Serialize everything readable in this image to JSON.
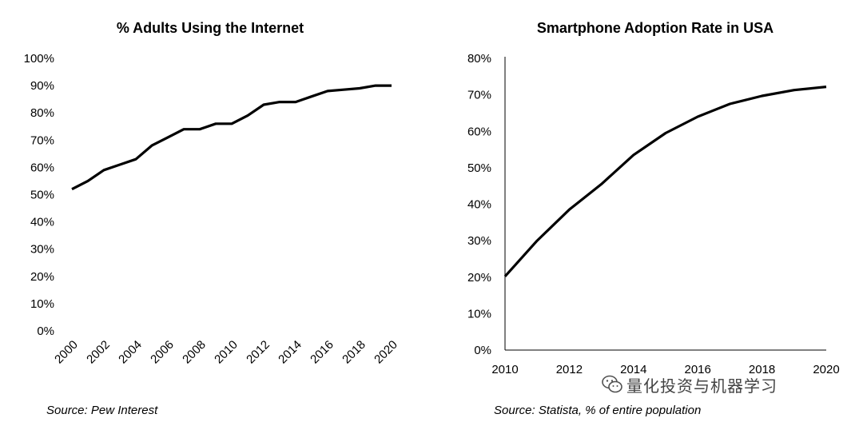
{
  "chart_data": [
    {
      "type": "line",
      "title": "% Adults Using the Internet",
      "x": [
        2000,
        2001,
        2002,
        2003,
        2004,
        2005,
        2006,
        2007,
        2008,
        2009,
        2010,
        2011,
        2012,
        2013,
        2014,
        2015,
        2016,
        2017,
        2018,
        2019,
        2020
      ],
      "series": [
        {
          "values": [
            52,
            55,
            59,
            61,
            63,
            68,
            71,
            74,
            74,
            76,
            76,
            79,
            83,
            84,
            84,
            86,
            88,
            88.5,
            89,
            90,
            90
          ]
        }
      ],
      "ylim": [
        0,
        100
      ],
      "y_ticks": [
        "0%",
        "10%",
        "20%",
        "30%",
        "40%",
        "50%",
        "60%",
        "70%",
        "80%",
        "90%",
        "100%"
      ],
      "x_ticks": [
        "2000",
        "2002",
        "2004",
        "2006",
        "2008",
        "2010",
        "2012",
        "2014",
        "2016",
        "2018",
        "2020"
      ],
      "grid": false,
      "source": "Source: Pew Interest"
    },
    {
      "type": "line",
      "title": "Smartphone Adoption Rate in USA",
      "x": [
        2010,
        2011,
        2012,
        2013,
        2014,
        2015,
        2016,
        2017,
        2018,
        2019,
        2020
      ],
      "series": [
        {
          "values": [
            20.2,
            30,
            38.5,
            45.5,
            53.5,
            59.5,
            64,
            67.5,
            69.7,
            71.3,
            72.2
          ]
        }
      ],
      "ylim": [
        0,
        80
      ],
      "y_ticks": [
        "0%",
        "10%",
        "20%",
        "30%",
        "40%",
        "50%",
        "60%",
        "70%",
        "80%"
      ],
      "x_ticks": [
        "2010",
        "2012",
        "2014",
        "2016",
        "2018",
        "2020"
      ],
      "grid": false,
      "source": "Source: Statista, % of entire population"
    }
  ],
  "watermark": {
    "text": "量化投资与机器学习",
    "icon": "wechat-icon"
  }
}
